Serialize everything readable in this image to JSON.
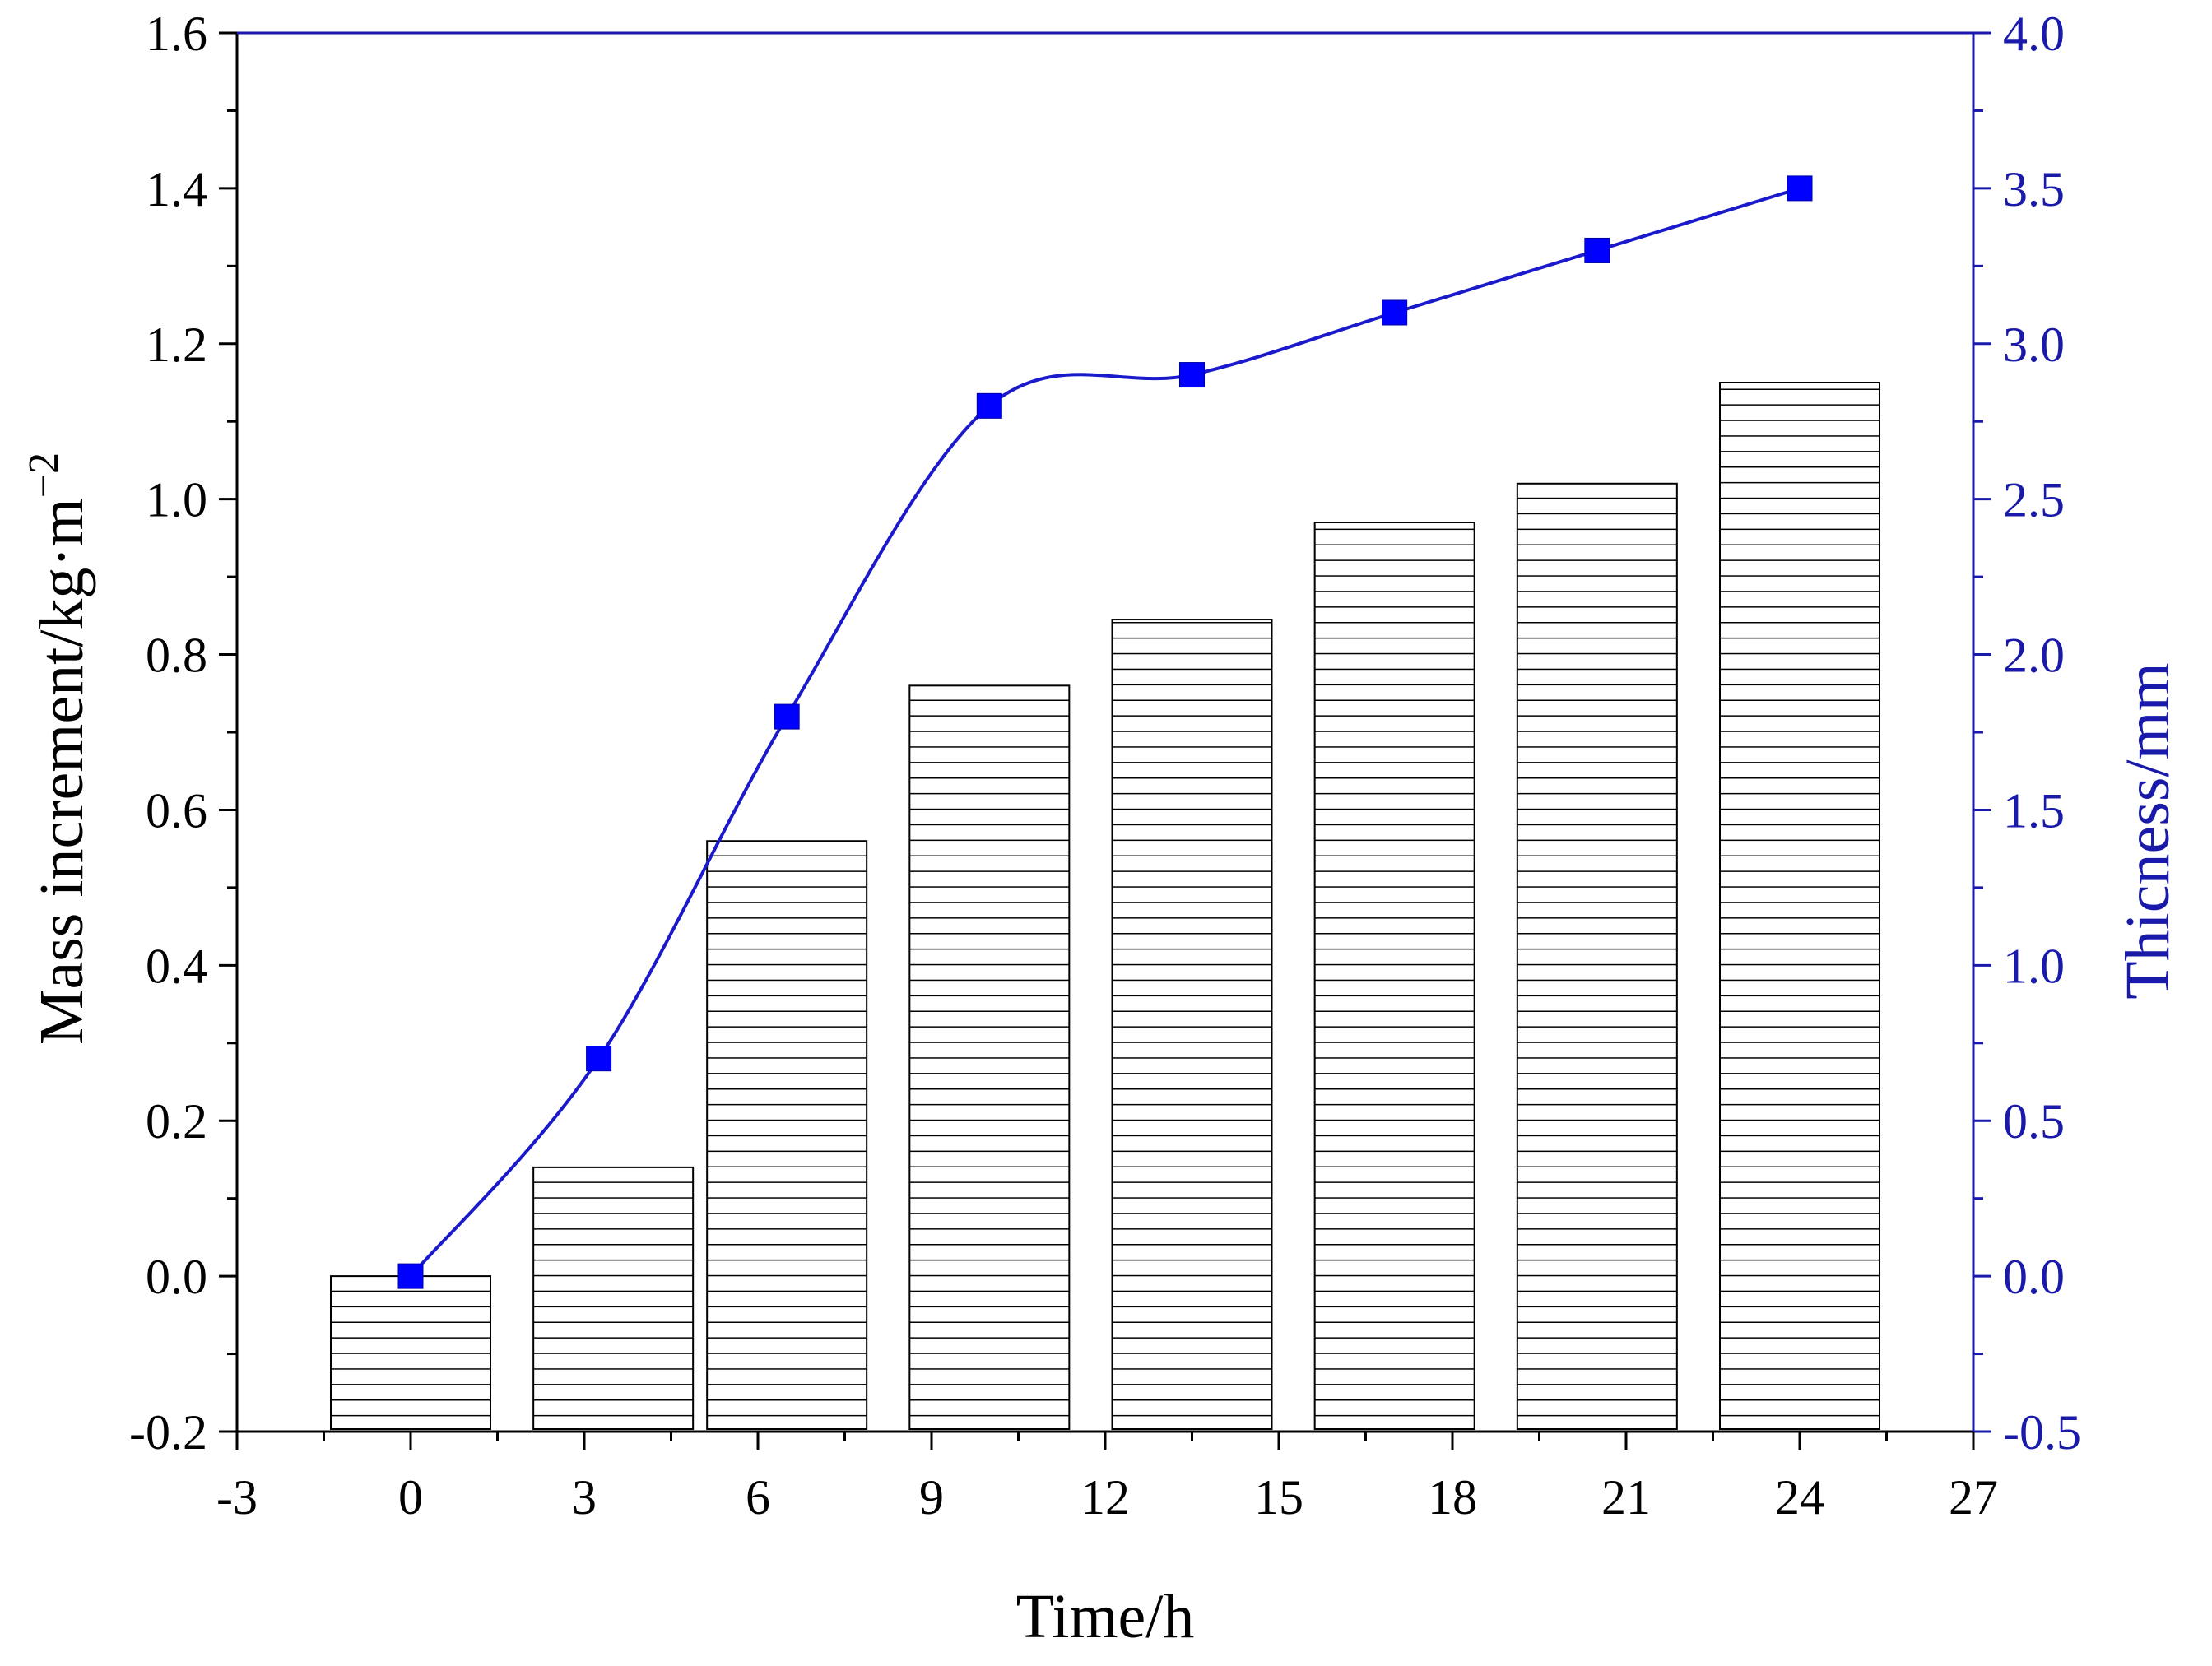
{
  "chart_data": {
    "type": "bar+line",
    "title": "",
    "xlabel": "Time/h",
    "ylabel_left": {
      "main": "Mass increment/kg·m",
      "superscript": "−2"
    },
    "ylabel_right": "Thicness/mm",
    "xlim": [
      -3,
      27
    ],
    "xticks": [
      -3,
      0,
      3,
      6,
      9,
      12,
      15,
      18,
      21,
      24,
      27
    ],
    "xtick_labels": [
      "-3",
      "0",
      "3",
      "6",
      "9",
      "12",
      "15",
      "18",
      "21",
      "24",
      "27"
    ],
    "ylim_left": [
      -0.2,
      1.6
    ],
    "yticks_left": [
      -0.2,
      0.0,
      0.2,
      0.4,
      0.6,
      0.8,
      1.0,
      1.2,
      1.4,
      1.6
    ],
    "ytick_labels_left": [
      "-0.2",
      "0.0",
      "0.2",
      "0.4",
      "0.6",
      "0.8",
      "1.0",
      "1.2",
      "1.4",
      "1.6"
    ],
    "ylim_right": [
      -0.5,
      4.0
    ],
    "yticks_right": [
      -0.5,
      0.0,
      0.5,
      1.0,
      1.5,
      2.0,
      2.5,
      3.0,
      3.5,
      4.0
    ],
    "ytick_labels_right": [
      "-0.5",
      "0.0",
      "0.5",
      "1.0",
      "1.5",
      "2.0",
      "2.5",
      "3.0",
      "3.5",
      "4.0"
    ],
    "bars": {
      "axis": "left",
      "pattern": "horizontal-hatch",
      "x": [
        0,
        3.5,
        6.5,
        10,
        13.5,
        17,
        20.5,
        24
      ],
      "values": [
        0.0,
        0.14,
        0.56,
        0.76,
        0.845,
        0.97,
        1.02,
        1.15
      ]
    },
    "line": {
      "axis": "right",
      "marker": "square",
      "smooth": true,
      "x": [
        0,
        3.25,
        6.5,
        10,
        13.5,
        17,
        20.5,
        24
      ],
      "values": [
        0.0,
        0.7,
        1.8,
        2.8,
        2.9,
        3.1,
        3.3,
        3.5
      ]
    },
    "grid": false,
    "legend": "none",
    "colors": {
      "line": "#1a1acc",
      "marker": "#0000ff",
      "right_axis": "#1a1aaa",
      "bars": "#000000"
    }
  }
}
